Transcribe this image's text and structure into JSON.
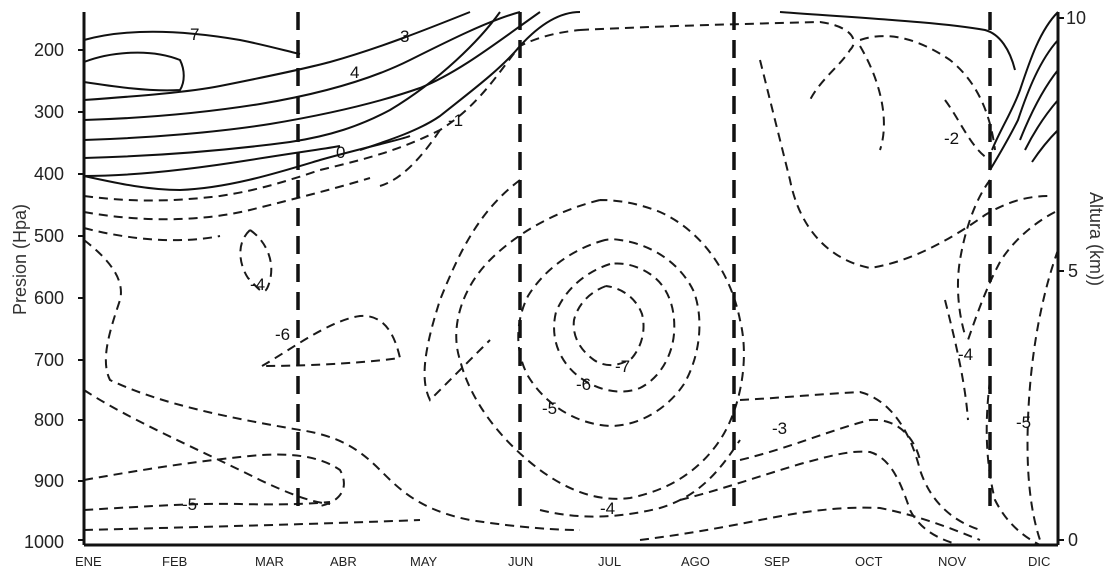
{
  "chart_data": {
    "type": "contour",
    "xlabel": "",
    "ylabel": "Presion (Hpa)",
    "y2label": "Altura (km))",
    "x_ticks": [
      "ENE",
      "FEB",
      "MAR",
      "ABR",
      "MAY",
      "JUN",
      "JUL",
      "AGO",
      "SEP",
      "OCT",
      "NOV",
      "DIC"
    ],
    "y_ticks": [
      "200",
      "300",
      "400",
      "500",
      "600",
      "700",
      "800",
      "900",
      "1000"
    ],
    "y2_ticks": [
      "10",
      "5",
      "0"
    ],
    "ylim": [
      1000,
      150
    ],
    "season_boundaries": [
      "MAR",
      "JUN",
      "AGO",
      "NOV"
    ],
    "contour_labels": [
      {
        "text": "7",
        "month": "FEB",
        "pressure": 180
      },
      {
        "text": "3",
        "month": "MAR",
        "pressure": 200
      },
      {
        "text": "4",
        "month": "MAR",
        "pressure": 250
      },
      {
        "text": "-1",
        "month": "ABR",
        "pressure": 310
      },
      {
        "text": "0",
        "month": "ABR",
        "pressure": 365
      },
      {
        "text": "-2",
        "month": "OCT",
        "pressure": 345
      },
      {
        "text": "-4",
        "month": "MAR",
        "pressure": 580
      },
      {
        "text": "-6",
        "month": "MAR",
        "pressure": 655
      },
      {
        "text": "-7",
        "month": "JUL",
        "pressure": 710
      },
      {
        "text": "-6",
        "month": "JUN",
        "pressure": 740
      },
      {
        "text": "-5",
        "month": "MAY",
        "pressure": 805
      },
      {
        "text": "-4",
        "month": "JUL",
        "pressure": 950
      },
      {
        "text": "-5",
        "month": "FEB",
        "pressure": 935
      },
      {
        "text": "-3",
        "month": "SEP",
        "pressure": 860
      },
      {
        "text": "-4",
        "month": "NOV",
        "pressure": 695
      },
      {
        "text": "-5",
        "month": "DIC",
        "pressure": 820
      }
    ]
  },
  "colors": {
    "line": "#111111",
    "dash": "#1a1a1a",
    "background": "#ffffff"
  }
}
